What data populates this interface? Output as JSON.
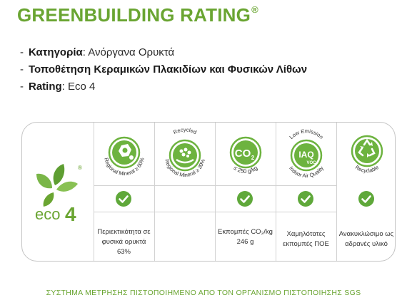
{
  "title": "GREENBUILDING RATING",
  "title_mark": "®",
  "bullets": [
    {
      "dash": "-",
      "label": "Κατηγορία",
      "sep": ":",
      "value": " Ανόργανα Ορυκτά"
    },
    {
      "dash": "-",
      "label": "Τοποθέτηση Κεραμικών Πλακιδίων και Φυσικών Λίθων",
      "sep": "",
      "value": ""
    },
    {
      "dash": "-",
      "label": "Rating",
      "sep": ":",
      "value": " Eco 4"
    }
  ],
  "logo": {
    "text": "eco",
    "number": "4",
    "mark": "®"
  },
  "criteria": [
    {
      "icon": "regional-mineral-60-icon",
      "curved_label": "Regional Mineral ≥ 60%",
      "top_label": "",
      "checked": true,
      "description": [
        "Περιεκτικότητα σε",
        "φυσικά ορυκτά",
        "63%"
      ]
    },
    {
      "icon": "recycled-regional-mineral-30-icon",
      "curved_label": "Regional Mineral ≥ 30%",
      "top_label": "Recycled",
      "checked": false,
      "description": []
    },
    {
      "icon": "co2-icon",
      "icon_text": "CO",
      "icon_sub": "2",
      "curved_label": "≤ 250 g/kg",
      "top_label": "",
      "checked": true,
      "description": [
        "Εκπομπές CO₂/kg",
        "246 g"
      ]
    },
    {
      "icon": "iaq-voc-icon",
      "icon_text": "IAQ",
      "icon_sub": "VOC",
      "curved_label": "Indoor Air Quality",
      "top_label": "Low Emission",
      "checked": true,
      "description": [
        "Χαμηλότατες",
        "εκπομπές ΠΟΕ"
      ]
    },
    {
      "icon": "recyclable-icon",
      "curved_label": "Recyclable",
      "top_label": "",
      "checked": true,
      "description": [
        "Ανακυκλώσιμο ως",
        "αδρανές υλικό"
      ]
    }
  ],
  "footer": "ΣΥΣΤΗΜΑ ΜΕΤΡΗΣΗΣ ΠΙΣΤΟΠΟΙΗΜΕΝΟ ΑΠΟ ΤΟΝ ΟΡΓΑΝΙΣΜΟ ΠΙΣΤΟΠΟΙΗΣΗΣ SGS",
  "colors": {
    "brand_green": "#6aa532",
    "icon_green": "#6db33f",
    "check_green": "#5fa83a",
    "border": "#c4c4c4"
  }
}
